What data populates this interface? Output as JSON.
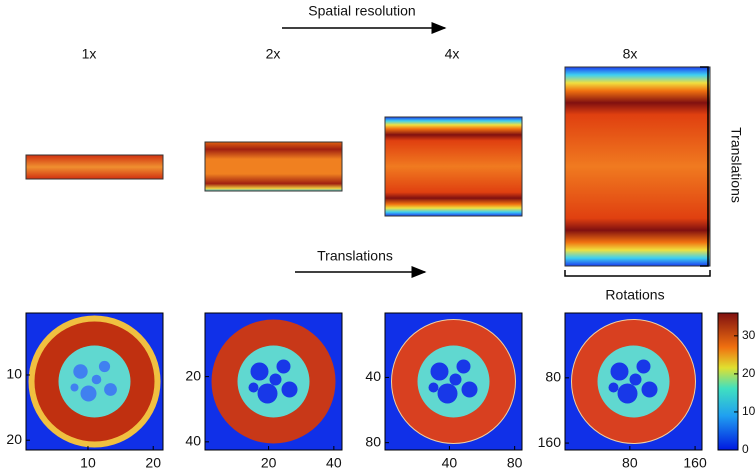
{
  "header": {
    "title": "Spatial resolution"
  },
  "columns": [
    {
      "label": "1x"
    },
    {
      "label": "2x"
    },
    {
      "label": "4x"
    },
    {
      "label": "8x"
    }
  ],
  "sinogram_axes": {
    "vertical": "Translations",
    "horizontal": "Rotations"
  },
  "arrow_label": "Translations",
  "panels": [
    {
      "xlim": [
        0.5,
        21.5
      ],
      "ylim": [
        0.5,
        21.5
      ],
      "xticks": [
        10,
        20
      ],
      "yticks": [
        10,
        20
      ]
    },
    {
      "xlim": [
        0.5,
        42.5
      ],
      "ylim": [
        0.5,
        42.5
      ],
      "xticks": [
        20,
        40
      ],
      "yticks": [
        20,
        40
      ]
    },
    {
      "xlim": [
        0.5,
        84.5
      ],
      "ylim": [
        0.5,
        84.5
      ],
      "xticks": [
        40,
        80
      ],
      "yticks": [
        40,
        80
      ]
    },
    {
      "xlim": [
        0.5,
        168.5
      ],
      "ylim": [
        0.5,
        168.5
      ],
      "xticks": [
        80,
        160
      ],
      "yticks": [
        80,
        160
      ]
    }
  ],
  "colorbar": {
    "lim": [
      0,
      36
    ],
    "ticks": [
      0,
      10,
      20,
      30
    ]
  }
}
